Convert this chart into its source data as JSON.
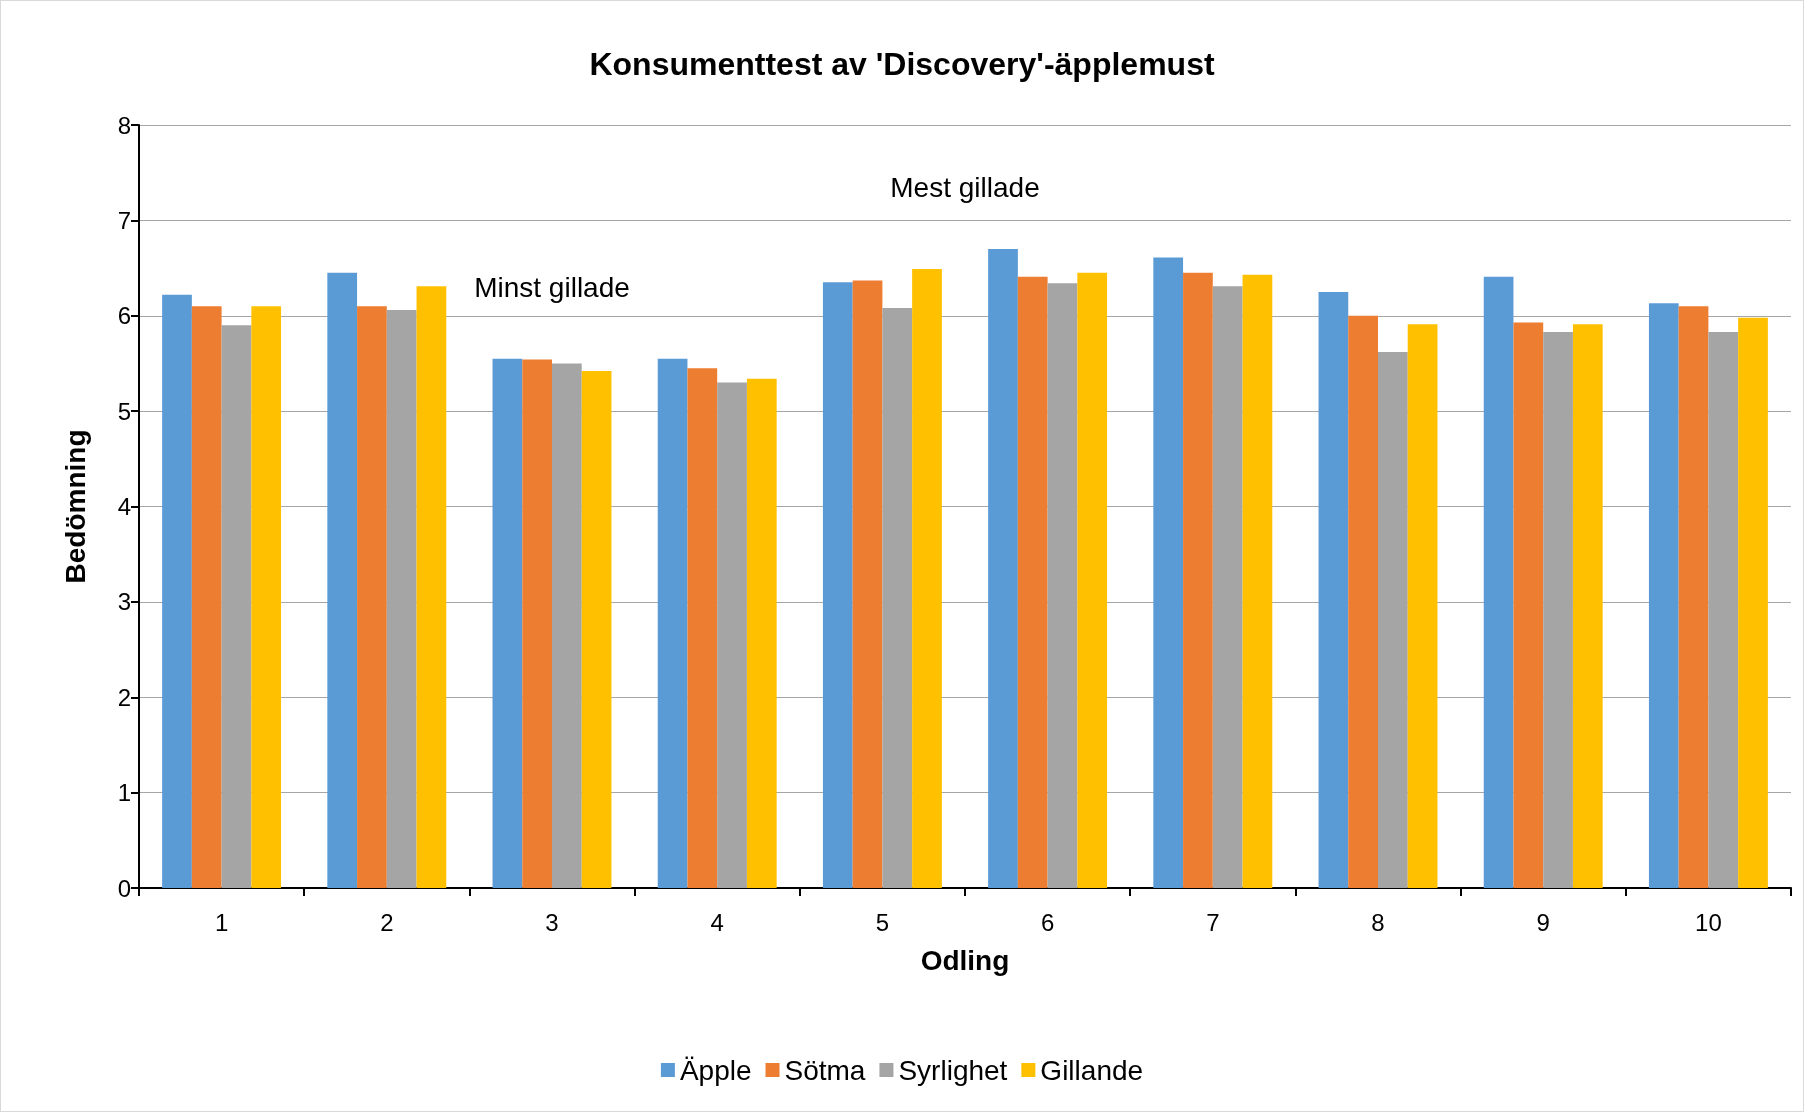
{
  "chart_data": {
    "type": "bar",
    "title": "Konsumenttest av 'Discovery'-äpplemust",
    "xlabel": "Odling",
    "ylabel": "Bedömning",
    "categories": [
      "1",
      "2",
      "3",
      "4",
      "5",
      "6",
      "7",
      "8",
      "9",
      "10"
    ],
    "series": [
      {
        "name": "Äpple",
        "color": "#5b9bd5",
        "values": [
          6.22,
          6.45,
          5.55,
          5.55,
          6.35,
          6.7,
          6.61,
          6.25,
          6.41,
          6.13
        ]
      },
      {
        "name": "Sötma",
        "color": "#ed7d31",
        "values": [
          6.1,
          6.1,
          5.54,
          5.45,
          6.37,
          6.41,
          6.45,
          6.0,
          5.93,
          6.1
        ]
      },
      {
        "name": "Syrlighet",
        "color": "#a5a5a5",
        "values": [
          5.9,
          6.06,
          5.5,
          5.3,
          6.08,
          6.34,
          6.31,
          5.62,
          5.83,
          5.83
        ]
      },
      {
        "name": "Gillande",
        "color": "#ffc000",
        "values": [
          6.1,
          6.31,
          5.42,
          5.34,
          6.49,
          6.45,
          6.43,
          5.91,
          5.91,
          5.98
        ]
      }
    ],
    "ylim": [
      0,
      8
    ],
    "yticks": [
      0,
      1,
      2,
      3,
      4,
      5,
      6,
      7,
      8
    ],
    "grid": "y",
    "legend": "bottom",
    "annotations": [
      "Minst gillade",
      "Mest gillade"
    ]
  }
}
